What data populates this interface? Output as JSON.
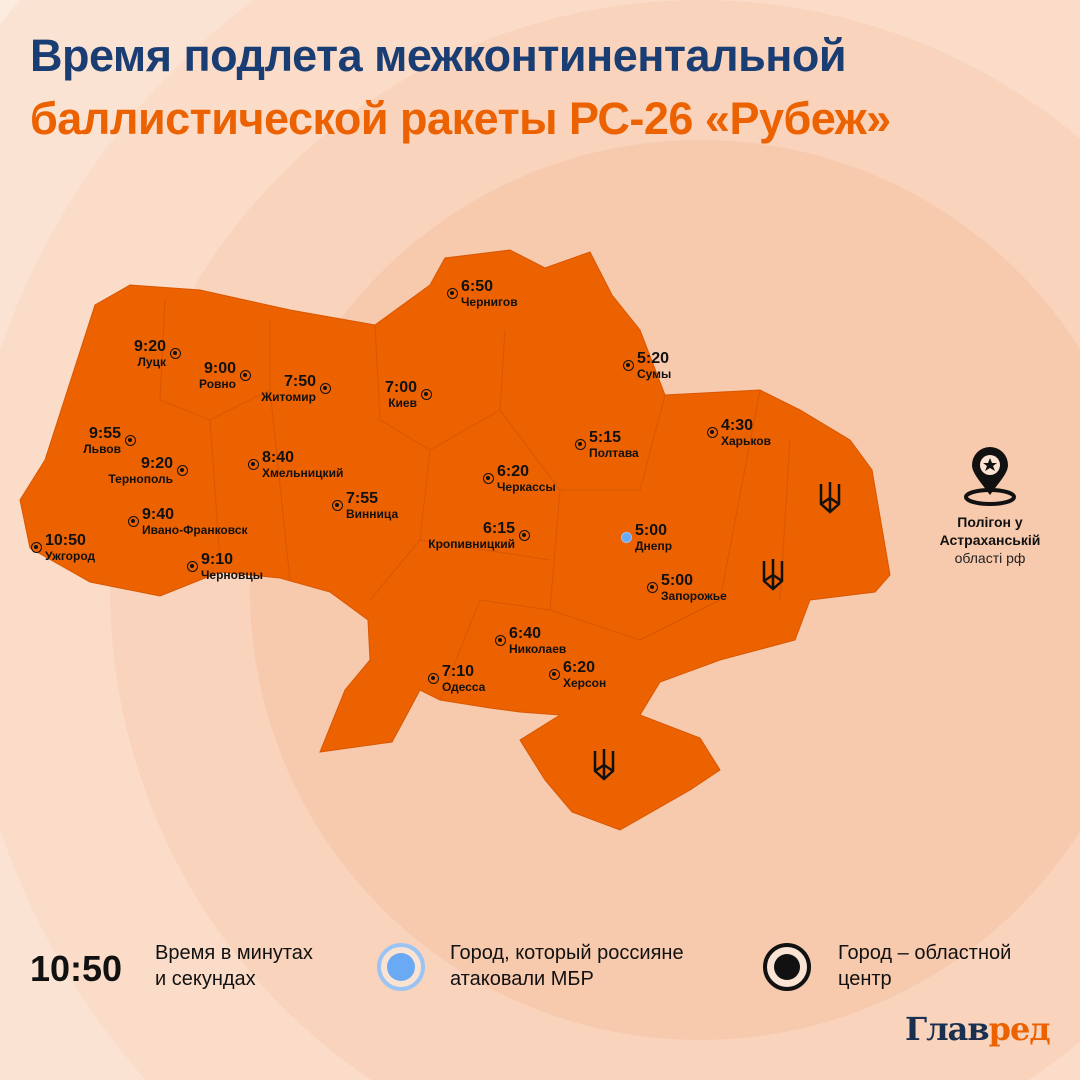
{
  "title_line1": "Время подлета межконтинентальной",
  "title_line2": "баллистической ракеты РС-26 «Рубеж»",
  "colors": {
    "title_blue": "#1a3e73",
    "accent_orange": "#ec6100",
    "map_fill": "#ec6100",
    "attacked_city": "#6aa9f4",
    "background": "#fcebdf"
  },
  "cities": [
    {
      "name": "Луцк",
      "time": "9:20",
      "type": "oblast-center"
    },
    {
      "name": "Ровно",
      "time": "9:00",
      "type": "oblast-center"
    },
    {
      "name": "Житомир",
      "time": "7:50",
      "type": "oblast-center"
    },
    {
      "name": "Киев",
      "time": "7:00",
      "type": "oblast-center"
    },
    {
      "name": "Чернигов",
      "time": "6:50",
      "type": "oblast-center"
    },
    {
      "name": "Сумы",
      "time": "5:20",
      "type": "oblast-center"
    },
    {
      "name": "Харьков",
      "time": "4:30",
      "type": "oblast-center"
    },
    {
      "name": "Полтава",
      "time": "5:15",
      "type": "oblast-center"
    },
    {
      "name": "Черкассы",
      "time": "6:20",
      "type": "oblast-center"
    },
    {
      "name": "Львов",
      "time": "9:55",
      "type": "oblast-center"
    },
    {
      "name": "Тернополь",
      "time": "9:20",
      "type": "oblast-center"
    },
    {
      "name": "Хмельницкий",
      "time": "8:40",
      "type": "oblast-center"
    },
    {
      "name": "Винница",
      "time": "7:55",
      "type": "oblast-center"
    },
    {
      "name": "Ивано-Франковск",
      "time": "9:40",
      "type": "oblast-center"
    },
    {
      "name": "Ужгород",
      "time": "10:50",
      "type": "oblast-center"
    },
    {
      "name": "Черновцы",
      "time": "9:10",
      "type": "oblast-center"
    },
    {
      "name": "Кропивницкий",
      "time": "6:15",
      "type": "oblast-center"
    },
    {
      "name": "Днепр",
      "time": "5:00",
      "type": "attacked"
    },
    {
      "name": "Запорожье",
      "time": "5:00",
      "type": "oblast-center"
    },
    {
      "name": "Николаев",
      "time": "6:40",
      "type": "oblast-center"
    },
    {
      "name": "Херсон",
      "time": "6:20",
      "type": "oblast-center"
    },
    {
      "name": "Одесса",
      "time": "7:10",
      "type": "oblast-center"
    }
  ],
  "polygon": {
    "line1": "Полігон у",
    "line2": "Астраханській",
    "line3": "області рф",
    "icon": "map-pin-star-icon"
  },
  "legend": {
    "time_example": "10:50",
    "time_text": "Время в минутах\nи секундах",
    "attacked_text": "Город, который россияне\nатаковали МБР",
    "center_text": "Город – областной\nцентр"
  },
  "logo": {
    "part1": "Глав",
    "part2": "ред"
  }
}
